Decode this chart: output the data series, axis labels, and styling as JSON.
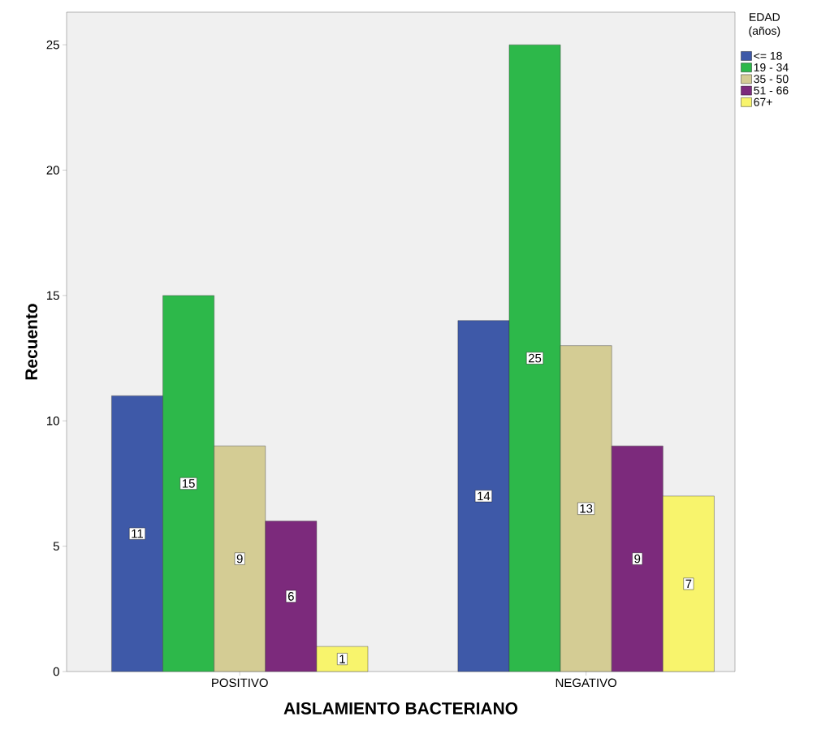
{
  "chart_data": {
    "type": "bar",
    "xlabel": "AISLAMIENTO BACTERIANO",
    "ylabel": "Recuento",
    "legend_title": "EDAD (años)",
    "categories": [
      "POSITIVO",
      "NEGATIVO"
    ],
    "series": [
      {
        "name": "<= 18",
        "color": "#3e59a8",
        "values": [
          11,
          14
        ]
      },
      {
        "name": "19 - 34",
        "color": "#2db84a",
        "values": [
          15,
          25
        ]
      },
      {
        "name": "35 - 50",
        "color": "#d4cc94",
        "values": [
          9,
          13
        ]
      },
      {
        "name": "51 - 66",
        "color": "#7c2a7c",
        "values": [
          6,
          9
        ]
      },
      {
        "name": "67+",
        "color": "#f8f46c",
        "values": [
          1,
          7
        ]
      }
    ],
    "ylim": [
      0,
      26.3
    ],
    "yticks": [
      0,
      5,
      10,
      15,
      20,
      25
    ],
    "grid": false,
    "legend": "top right",
    "data_labels": true
  }
}
